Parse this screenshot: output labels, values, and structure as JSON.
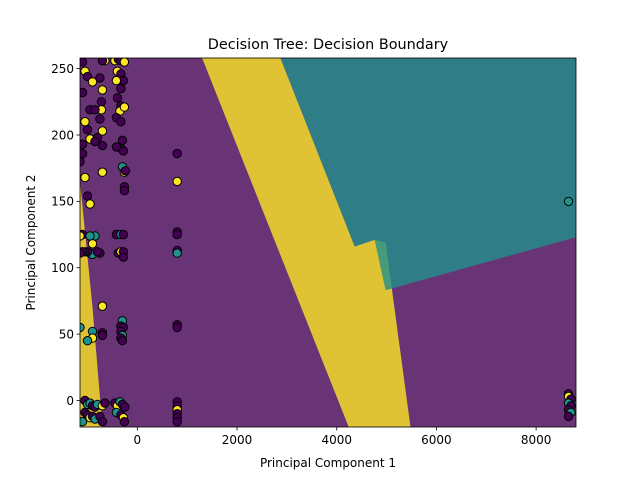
{
  "chart_data": {
    "type": "scatter",
    "title": "Decision Tree: Decision Boundary",
    "xlabel": "Principal Component 1",
    "ylabel": "Principal Component 2",
    "xlim": [
      -1150,
      8800
    ],
    "ylim": [
      -20,
      258
    ],
    "xticks": [
      0,
      2000,
      4000,
      6000,
      8000
    ],
    "yticks": [
      0,
      50,
      100,
      150,
      200,
      250
    ],
    "grid": false,
    "legend": "none",
    "class_colors": {
      "0": "#440154",
      "1": "#21918c",
      "2": "#fde725"
    },
    "decision_regions": [
      {
        "class": 2,
        "polygon": [
          [
            1300,
            258
          ],
          [
            2870,
            258
          ],
          [
            4360,
            116
          ],
          [
            4760,
            121
          ],
          [
            4980,
            119
          ],
          [
            5480,
            -20
          ],
          [
            4240,
            -20
          ]
        ]
      },
      {
        "class": 1,
        "polygon": [
          [
            2870,
            258
          ],
          [
            8800,
            258
          ],
          [
            8800,
            123
          ],
          [
            4980,
            83
          ],
          [
            4760,
            121
          ],
          [
            4360,
            116
          ]
        ]
      },
      {
        "class": 2,
        "polygon": [
          [
            -1150,
            165
          ],
          [
            -1150,
            -20
          ],
          [
            -700,
            -20
          ],
          [
            -900,
            70
          ]
        ]
      }
    ],
    "background_class": 0,
    "points": [
      {
        "x": -1100,
        "y": 255,
        "class": 0
      },
      {
        "x": -1050,
        "y": 248,
        "class": 2
      },
      {
        "x": -1100,
        "y": 232,
        "class": 0
      },
      {
        "x": -1000,
        "y": 244,
        "class": 0
      },
      {
        "x": -950,
        "y": 219,
        "class": 0
      },
      {
        "x": -1050,
        "y": 210,
        "class": 2
      },
      {
        "x": -1000,
        "y": 204,
        "class": 0
      },
      {
        "x": -950,
        "y": 197,
        "class": 2
      },
      {
        "x": -1100,
        "y": 193,
        "class": 0
      },
      {
        "x": -1100,
        "y": 186,
        "class": 0
      },
      {
        "x": -1150,
        "y": 180,
        "class": 0
      },
      {
        "x": -1050,
        "y": 168,
        "class": 2
      },
      {
        "x": -1000,
        "y": 154,
        "class": 0
      },
      {
        "x": -950,
        "y": 148,
        "class": 2
      },
      {
        "x": -1100,
        "y": 125,
        "class": 0
      },
      {
        "x": -1150,
        "y": 124,
        "class": 2
      },
      {
        "x": -900,
        "y": 240,
        "class": 2
      },
      {
        "x": -750,
        "y": 243,
        "class": 0
      },
      {
        "x": -700,
        "y": 234,
        "class": 2
      },
      {
        "x": -720,
        "y": 225,
        "class": 0
      },
      {
        "x": -720,
        "y": 219,
        "class": 2
      },
      {
        "x": -850,
        "y": 219,
        "class": 0
      },
      {
        "x": -750,
        "y": 212,
        "class": 0
      },
      {
        "x": -700,
        "y": 203,
        "class": 2
      },
      {
        "x": -800,
        "y": 198,
        "class": 0
      },
      {
        "x": -850,
        "y": 195,
        "class": 0
      },
      {
        "x": -700,
        "y": 192,
        "class": 0
      },
      {
        "x": -700,
        "y": 172,
        "class": 2
      },
      {
        "x": -650,
        "y": 256,
        "class": 2
      },
      {
        "x": -700,
        "y": 256,
        "class": 0
      },
      {
        "x": -450,
        "y": 256,
        "class": 2
      },
      {
        "x": -380,
        "y": 257,
        "class": 0
      },
      {
        "x": -330,
        "y": 256,
        "class": 0
      },
      {
        "x": -260,
        "y": 255,
        "class": 2
      },
      {
        "x": -400,
        "y": 248,
        "class": 2
      },
      {
        "x": -330,
        "y": 246,
        "class": 0
      },
      {
        "x": -280,
        "y": 241,
        "class": 0
      },
      {
        "x": -420,
        "y": 241,
        "class": 2
      },
      {
        "x": -330,
        "y": 235,
        "class": 0
      },
      {
        "x": -400,
        "y": 228,
        "class": 0
      },
      {
        "x": -330,
        "y": 222,
        "class": 0
      },
      {
        "x": -350,
        "y": 218,
        "class": 2
      },
      {
        "x": -260,
        "y": 221,
        "class": 2
      },
      {
        "x": -420,
        "y": 213,
        "class": 0
      },
      {
        "x": -330,
        "y": 210,
        "class": 0
      },
      {
        "x": -300,
        "y": 196,
        "class": 0
      },
      {
        "x": -330,
        "y": 190,
        "class": 0
      },
      {
        "x": -280,
        "y": 188,
        "class": 0
      },
      {
        "x": -420,
        "y": 191,
        "class": 0
      },
      {
        "x": -300,
        "y": 176,
        "class": 1
      },
      {
        "x": -260,
        "y": 172,
        "class": 2
      },
      {
        "x": -240,
        "y": 173,
        "class": 0
      },
      {
        "x": -260,
        "y": 161,
        "class": 0
      },
      {
        "x": -260,
        "y": 158,
        "class": 0
      },
      {
        "x": -850,
        "y": 124,
        "class": 1
      },
      {
        "x": -950,
        "y": 124,
        "class": 1
      },
      {
        "x": -900,
        "y": 118,
        "class": 2
      },
      {
        "x": -950,
        "y": 111,
        "class": 0
      },
      {
        "x": -900,
        "y": 110,
        "class": 1
      },
      {
        "x": -1000,
        "y": 112,
        "class": 0
      },
      {
        "x": -1050,
        "y": 112,
        "class": 0
      },
      {
        "x": -1100,
        "y": 112,
        "class": 0
      },
      {
        "x": -1150,
        "y": 111,
        "class": 0
      },
      {
        "x": -750,
        "y": 111,
        "class": 0
      },
      {
        "x": -800,
        "y": 112,
        "class": 0
      },
      {
        "x": -420,
        "y": 125,
        "class": 0
      },
      {
        "x": -330,
        "y": 125,
        "class": 1
      },
      {
        "x": -280,
        "y": 125,
        "class": 0
      },
      {
        "x": -380,
        "y": 111,
        "class": 0
      },
      {
        "x": -330,
        "y": 112,
        "class": 2
      },
      {
        "x": -280,
        "y": 112,
        "class": 0
      },
      {
        "x": -280,
        "y": 108,
        "class": 0
      },
      {
        "x": -700,
        "y": 71,
        "class": 2
      },
      {
        "x": -1150,
        "y": 55,
        "class": 1
      },
      {
        "x": -900,
        "y": 52,
        "class": 1
      },
      {
        "x": -900,
        "y": 47,
        "class": 2
      },
      {
        "x": -1000,
        "y": 45,
        "class": 1
      },
      {
        "x": -700,
        "y": 51,
        "class": 0
      },
      {
        "x": -700,
        "y": 49,
        "class": 0
      },
      {
        "x": -300,
        "y": 60,
        "class": 1
      },
      {
        "x": -330,
        "y": 56,
        "class": 0
      },
      {
        "x": -280,
        "y": 55,
        "class": 0
      },
      {
        "x": -330,
        "y": 52,
        "class": 0
      },
      {
        "x": -300,
        "y": 49,
        "class": 1
      },
      {
        "x": -330,
        "y": 47,
        "class": 0
      },
      {
        "x": -300,
        "y": 45,
        "class": 0
      },
      {
        "x": 800,
        "y": 186,
        "class": 0
      },
      {
        "x": 800,
        "y": 165,
        "class": 2
      },
      {
        "x": 800,
        "y": 127,
        "class": 0
      },
      {
        "x": 800,
        "y": 125,
        "class": 0
      },
      {
        "x": 800,
        "y": 113,
        "class": 0
      },
      {
        "x": 800,
        "y": 111,
        "class": 1
      },
      {
        "x": 800,
        "y": 57,
        "class": 0
      },
      {
        "x": 800,
        "y": 55,
        "class": 0
      },
      {
        "x": -1050,
        "y": 0,
        "class": 0
      },
      {
        "x": -1000,
        "y": -3,
        "class": 1
      },
      {
        "x": -950,
        "y": -2,
        "class": 1
      },
      {
        "x": -900,
        "y": -4,
        "class": 0
      },
      {
        "x": -850,
        "y": -5,
        "class": 0
      },
      {
        "x": -800,
        "y": -3,
        "class": 1
      },
      {
        "x": -700,
        "y": -4,
        "class": 2
      },
      {
        "x": -650,
        "y": -2,
        "class": 0
      },
      {
        "x": -1050,
        "y": -9,
        "class": 0
      },
      {
        "x": -1000,
        "y": -11,
        "class": 0
      },
      {
        "x": -950,
        "y": -13,
        "class": 2
      },
      {
        "x": -900,
        "y": -12,
        "class": 0
      },
      {
        "x": -850,
        "y": -14,
        "class": 1
      },
      {
        "x": -750,
        "y": -12,
        "class": 0
      },
      {
        "x": -700,
        "y": -16,
        "class": 0
      },
      {
        "x": -1100,
        "y": -16,
        "class": 1
      },
      {
        "x": -450,
        "y": -2,
        "class": 0
      },
      {
        "x": -400,
        "y": -4,
        "class": 2
      },
      {
        "x": -350,
        "y": -1,
        "class": 1
      },
      {
        "x": -300,
        "y": -3,
        "class": 0
      },
      {
        "x": -250,
        "y": -5,
        "class": 0
      },
      {
        "x": -420,
        "y": -9,
        "class": 1
      },
      {
        "x": -330,
        "y": -11,
        "class": 0
      },
      {
        "x": -280,
        "y": -13,
        "class": 2
      },
      {
        "x": -260,
        "y": -16,
        "class": 0
      },
      {
        "x": 800,
        "y": -1,
        "class": 0
      },
      {
        "x": 800,
        "y": -4,
        "class": 0
      },
      {
        "x": 800,
        "y": -7,
        "class": 2
      },
      {
        "x": 800,
        "y": -10,
        "class": 0
      },
      {
        "x": 800,
        "y": -13,
        "class": 0
      },
      {
        "x": 800,
        "y": -16,
        "class": 0
      },
      {
        "x": 8650,
        "y": 150,
        "class": 1
      },
      {
        "x": 8650,
        "y": 5,
        "class": 0
      },
      {
        "x": 8650,
        "y": 3,
        "class": 2
      },
      {
        "x": 8700,
        "y": 1,
        "class": 0
      },
      {
        "x": 8650,
        "y": -2,
        "class": 1
      },
      {
        "x": 8700,
        "y": -4,
        "class": 0
      },
      {
        "x": 8650,
        "y": -7,
        "class": 0
      },
      {
        "x": 8700,
        "y": -9,
        "class": 1
      },
      {
        "x": 8650,
        "y": -12,
        "class": 0
      }
    ]
  }
}
